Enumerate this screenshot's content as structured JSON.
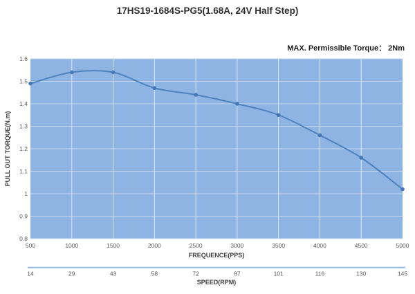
{
  "chart_data": {
    "type": "line",
    "title": "17HS19-1684S-PG5(1.68A, 24V Half Step)",
    "annotation": "MAX. Permissible Torque： 2Nm",
    "xlabel": "FREQUENCE(PPS)",
    "ylabel": "PULL OUT TORQUE(N.m)",
    "x": [
      500,
      1000,
      1500,
      2000,
      2500,
      3000,
      3500,
      4000,
      4500,
      5000
    ],
    "series": [
      {
        "name": "pull-out-torque",
        "values": [
          1.49,
          1.54,
          1.54,
          1.47,
          1.44,
          1.4,
          1.35,
          1.26,
          1.16,
          1.02
        ]
      }
    ],
    "secondary_x": {
      "label": "SPEED(RPM)",
      "values": [
        14,
        29,
        43,
        58,
        72,
        87,
        101,
        116,
        130,
        145
      ]
    },
    "ylim": [
      0.8,
      1.6
    ],
    "ytick_step": 0.1,
    "legend": "none",
    "grid": true,
    "colors": {
      "plot_bg": "#8db4e2",
      "line": "#4f81bd",
      "marker": "#4576b5",
      "grid_h": "#c7d8ef",
      "grid_v": "#dfe9f6",
      "tick_text": "#595959",
      "speed_axis_line": "#8ab6e4",
      "speed_axis_line_light": "#c8ddf2"
    }
  }
}
